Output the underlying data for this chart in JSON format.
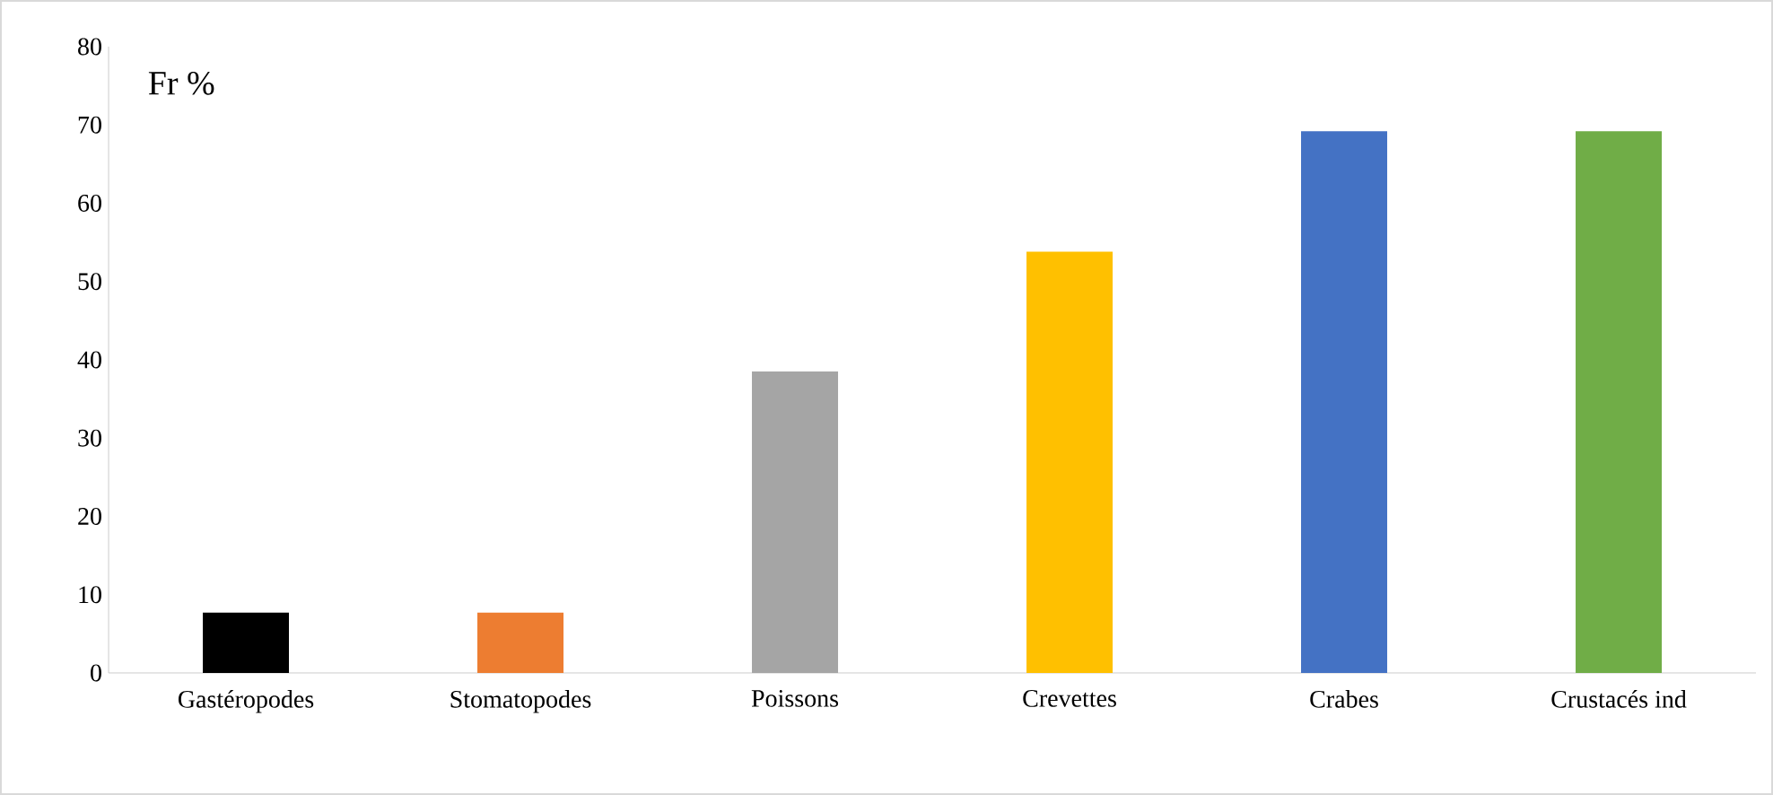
{
  "chart_data": {
    "type": "bar",
    "ylabel": "Fr %",
    "categories": [
      "Gastéropodes",
      "Stomatopodes",
      "Poissons",
      "Crevettes",
      "Crabes",
      "Crustacés ind"
    ],
    "values": [
      7.7,
      7.7,
      38.5,
      53.8,
      69.2,
      69.2
    ],
    "colors": [
      "#000000",
      "#ed7d31",
      "#a5a5a5",
      "#ffc000",
      "#4472c4",
      "#70ad47"
    ],
    "ylim": [
      0,
      80
    ],
    "yticks": [
      0,
      10,
      20,
      30,
      40,
      50,
      60,
      70,
      80
    ],
    "grid": false
  }
}
